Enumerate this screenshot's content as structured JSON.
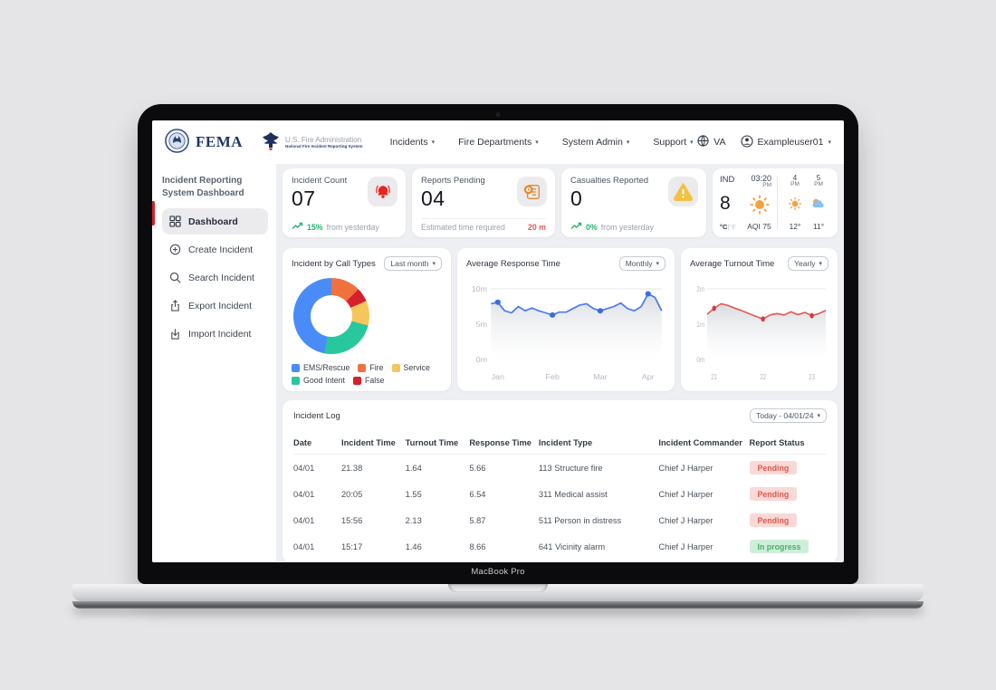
{
  "laptop": {
    "label": "MacBook Pro"
  },
  "header": {
    "brand": {
      "fema": "FEMA",
      "usfa_line1": "U.S. Fire Administration",
      "usfa_line2": "National Fire Incident Reporting System"
    },
    "nav": [
      {
        "label": "Incidents"
      },
      {
        "label": "Fire Departments"
      },
      {
        "label": "System Admin"
      },
      {
        "label": "Support"
      }
    ],
    "region": "VA",
    "user": "Exampleuser01"
  },
  "sidebar": {
    "title": "Incident Reporting System Dashboard",
    "items": [
      {
        "label": "Dashboard",
        "icon": "dashboard-grid",
        "active": true
      },
      {
        "label": "Create Incident",
        "icon": "plus-circle",
        "active": false
      },
      {
        "label": "Search Incident",
        "icon": "search",
        "active": false
      },
      {
        "label": "Export Incident",
        "icon": "export",
        "active": false
      },
      {
        "label": "Import Incident",
        "icon": "import",
        "active": false
      }
    ]
  },
  "stats": {
    "incident_count": {
      "label": "Incident Count",
      "value": "07",
      "trend_pct": "15%",
      "trend_note": "from yesterday"
    },
    "reports_pending": {
      "label": "Reports Pending",
      "value": "04",
      "note": "Estimated time required",
      "eta": "20 m"
    },
    "casualties": {
      "label": "Casualties Reported",
      "value": "0",
      "trend_pct": "0%",
      "trend_note": "from yesterday"
    },
    "weather": {
      "location": "IND",
      "time": "03:20",
      "meridiem": "PM",
      "temp": "8",
      "unit_c": "°C",
      "unit_f": "|°F",
      "aqi": "AQI 75",
      "forecast": [
        {
          "hour": "4",
          "meridiem": "PM",
          "temp": "12°",
          "icon": "sun"
        },
        {
          "hour": "5",
          "meridiem": "PM",
          "temp": "11°",
          "icon": "sun-cloud"
        }
      ]
    }
  },
  "chart_data": [
    {
      "type": "pie",
      "title": "Incident by Call Types",
      "period": "Last month",
      "segments_clockwise_from_top": [
        {
          "label": "Fire",
          "value": 12.5,
          "color": "#F0713D"
        },
        {
          "label": "False",
          "value": 6,
          "color": "#D6202B"
        },
        {
          "label": "Service",
          "value": 10.5,
          "color": "#F6C65C"
        },
        {
          "label": "Good Intent",
          "value": 24,
          "color": "#28C79E"
        },
        {
          "label": "EMS/Rescue",
          "value": 47,
          "color": "#4A8CF7"
        }
      ],
      "legend": [
        {
          "label": "EMS/Rescue",
          "color": "#4A8CF7"
        },
        {
          "label": "Fire",
          "color": "#F0713D"
        },
        {
          "label": "Service",
          "color": "#F6C65C"
        },
        {
          "label": "Good Intent",
          "color": "#28C79E"
        },
        {
          "label": "False",
          "color": "#D6202B"
        }
      ]
    },
    {
      "type": "line",
      "title": "Average Response Time",
      "period": "Monthly",
      "y_ticks": [
        "10m",
        "5m",
        "0m"
      ],
      "x_ticks": [
        "Jan",
        "Feb",
        "Mar",
        "Apr"
      ],
      "ylim": [
        0,
        10
      ],
      "values": [
        7.9,
        8.1,
        6.9,
        6.6,
        7.5,
        6.9,
        7.3,
        6.9,
        6.6,
        6.3,
        6.7,
        6.7,
        7.2,
        7.7,
        7.9,
        7.2,
        6.9,
        7.2,
        7.5,
        8.0,
        7.2,
        6.9,
        7.5,
        9.3,
        8.8,
        6.9
      ],
      "dot_indices": [
        1,
        9,
        16,
        23
      ],
      "color": "#4a7df0",
      "dot_color": "#3b6ce0"
    },
    {
      "type": "line",
      "title": "Average Turnout Time",
      "period": "Yearly",
      "y_ticks": [
        "2m",
        "1m",
        "0m"
      ],
      "x_ticks": [
        "21",
        "22",
        "23"
      ],
      "ylim": [
        0,
        2
      ],
      "values": [
        1.28,
        1.45,
        1.58,
        1.53,
        1.45,
        1.38,
        1.3,
        1.22,
        1.15,
        1.26,
        1.3,
        1.26,
        1.35,
        1.27,
        1.33,
        1.24,
        1.3,
        1.39
      ],
      "dot_indices": [
        1,
        8,
        15
      ],
      "color": "#e05b55",
      "dot_color": "#d43c3c"
    }
  ],
  "incident_log": {
    "title": "Incident Log",
    "date_filter": "Today - 04/01/24",
    "columns": [
      "Date",
      "Incident Time",
      "Turnout Time",
      "Response Time",
      "Incident Type",
      "Incident Commander",
      "Report Status"
    ],
    "rows": [
      [
        "04/01",
        "21.38",
        "1.64",
        "5.66",
        "113 Structure fire",
        "Chief J Harper",
        "Pending"
      ],
      [
        "04/01",
        "20:05",
        "1.55",
        "6.54",
        "311 Medical assist",
        "Chief J Harper",
        "Pending"
      ],
      [
        "04/01",
        "15:56",
        "2.13",
        "5.87",
        "511 Person in distress",
        "Chief J Harper",
        "Pending"
      ],
      [
        "04/01",
        "15:17",
        "1.46",
        "8.66",
        "641 Vicinity alarm",
        "Chief J Harper",
        "In progress"
      ]
    ],
    "status_styles": {
      "Pending": "pill-red",
      "In progress": "pill-green"
    }
  },
  "colors": {
    "accent_red": "#D6202B",
    "trend_green": "#22B573",
    "eta_red": "#E8574F"
  }
}
